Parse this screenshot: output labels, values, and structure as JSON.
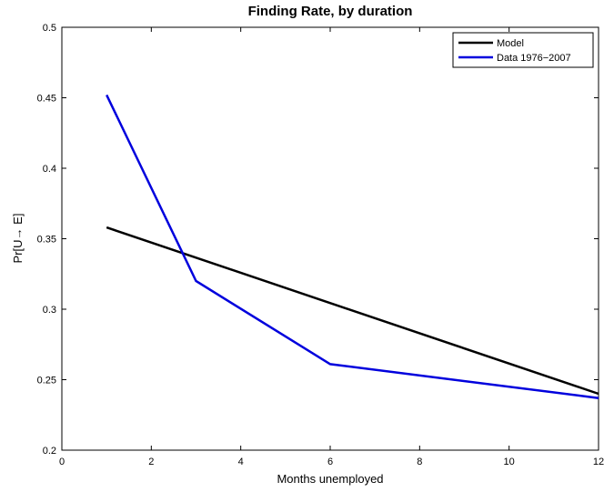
{
  "chart_data": {
    "type": "line",
    "title": "Finding Rate, by duration",
    "xlabel": "Months unemployed",
    "ylabel": "Pr[U→ E]",
    "xlim": [
      0,
      12
    ],
    "ylim": [
      0.2,
      0.5
    ],
    "xticks": [
      "0",
      "2",
      "4",
      "6",
      "8",
      "10",
      "12"
    ],
    "yticks": [
      "0.2",
      "0.25",
      "0.3",
      "0.35",
      "0.4",
      "0.45",
      "0.5"
    ],
    "grid": false,
    "legend_position": "top-right",
    "series": [
      {
        "name": "Model",
        "color": "#000000",
        "x": [
          1,
          12
        ],
        "y": [
          0.358,
          0.24
        ]
      },
      {
        "name": "Data 1976−2007",
        "color": "#0000dd",
        "x": [
          1,
          3,
          6,
          12
        ],
        "y": [
          0.452,
          0.32,
          0.261,
          0.237
        ]
      }
    ]
  }
}
